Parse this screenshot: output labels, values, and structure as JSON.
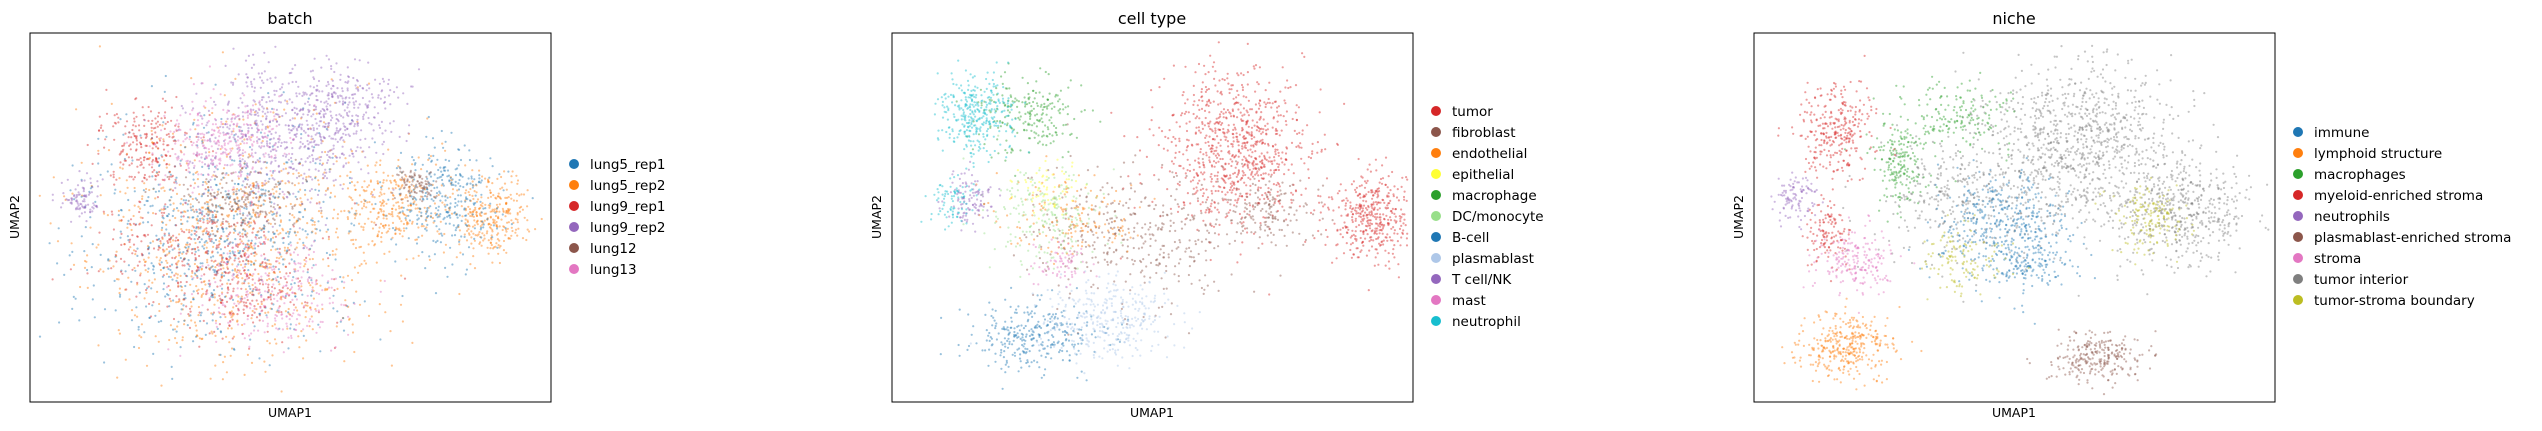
{
  "chart_data": [
    {
      "type": "scatter",
      "title": "batch",
      "xlabel": "UMAP1",
      "ylabel": "UMAP2",
      "grid": false,
      "legend_position": "right",
      "series": [
        {
          "name": "lung5_rep1",
          "color": "#1f77b4"
        },
        {
          "name": "lung5_rep2",
          "color": "#ff7f0e"
        },
        {
          "name": "lung9_rep1",
          "color": "#d62728"
        },
        {
          "name": "lung9_rep2",
          "color": "#9467bd"
        },
        {
          "name": "lung12",
          "color": "#8c564b"
        },
        {
          "name": "lung13",
          "color": "#e377c2"
        }
      ]
    },
    {
      "type": "scatter",
      "title": "cell type",
      "xlabel": "UMAP1",
      "ylabel": "UMAP2",
      "grid": false,
      "legend_position": "right",
      "series": [
        {
          "name": "tumor",
          "color": "#d62728"
        },
        {
          "name": "fibroblast",
          "color": "#8c564b"
        },
        {
          "name": "endothelial",
          "color": "#ff7f0e"
        },
        {
          "name": "epithelial",
          "color": "#ffff33"
        },
        {
          "name": "macrophage",
          "color": "#2ca02c"
        },
        {
          "name": "DC/monocyte",
          "color": "#98df8a"
        },
        {
          "name": "B-cell",
          "color": "#1f77b4"
        },
        {
          "name": "plasmablast",
          "color": "#aec7e8"
        },
        {
          "name": "T cell/NK",
          "color": "#9467bd"
        },
        {
          "name": "mast",
          "color": "#e377c2"
        },
        {
          "name": "neutrophil",
          "color": "#17becf"
        }
      ]
    },
    {
      "type": "scatter",
      "title": "niche",
      "xlabel": "UMAP1",
      "ylabel": "UMAP2",
      "grid": false,
      "legend_position": "right",
      "series": [
        {
          "name": "immune",
          "color": "#1f77b4"
        },
        {
          "name": "lymphoid structure",
          "color": "#ff7f0e"
        },
        {
          "name": "macrophages",
          "color": "#2ca02c"
        },
        {
          "name": "myeloid-enriched stroma",
          "color": "#d62728"
        },
        {
          "name": "neutrophils",
          "color": "#9467bd"
        },
        {
          "name": "plasmablast-enriched stroma",
          "color": "#8c564b"
        },
        {
          "name": "stroma",
          "color": "#e377c2"
        },
        {
          "name": "tumor interior",
          "color": "#7f7f7f"
        },
        {
          "name": "tumor-stroma boundary",
          "color": "#bcbd22"
        }
      ]
    }
  ]
}
